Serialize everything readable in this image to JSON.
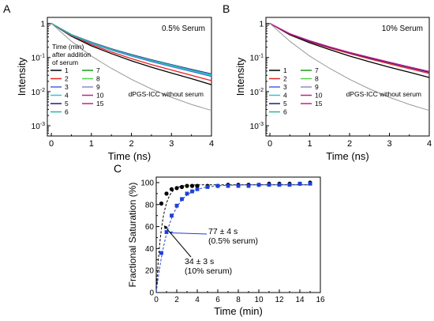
{
  "chart_data": [
    {
      "panel": "A",
      "type": "line",
      "xlabel": "Time (ns)",
      "ylabel": "Intensity",
      "xlim": [
        -0.1,
        4
      ],
      "ylim": [
        0.0005,
        1.5
      ],
      "yscale": "log",
      "xticks": [
        0,
        1,
        2,
        3,
        4
      ],
      "yticks": [
        {
          "v": 1,
          "label": "1"
        },
        {
          "v": 0.1,
          "label": "10-1"
        },
        {
          "v": 0.01,
          "label": "10-2"
        },
        {
          "v": 0.001,
          "label": "10-3"
        }
      ],
      "annotation": "0.5% Serum",
      "reference_label": "dPGS-ICC without serum",
      "legend_title": [
        "Time (min)",
        "after addition",
        "of serum"
      ],
      "legend": [
        {
          "label": "1",
          "color": "#000000"
        },
        {
          "label": "2",
          "color": "#e8231f"
        },
        {
          "label": "3",
          "color": "#5060e0"
        },
        {
          "label": "4",
          "color": "#27c9d6"
        },
        {
          "label": "5",
          "color": "#1a1a8c"
        },
        {
          "label": "6",
          "color": "#2fb39a"
        },
        {
          "label": "7",
          "color": "#1a9c1a"
        },
        {
          "label": "8",
          "color": "#55d14a"
        },
        {
          "label": "9",
          "color": "#8a8ad0"
        },
        {
          "label": "10",
          "color": "#c0208c"
        },
        {
          "label": "15",
          "color": "#c0208c"
        }
      ],
      "series": [
        {
          "name": "1",
          "color": "#000000",
          "x": [
            0,
            0.5,
            1,
            1.5,
            2,
            2.5,
            3,
            3.5,
            4
          ],
          "y": [
            1,
            0.42,
            0.22,
            0.13,
            0.08,
            0.052,
            0.035,
            0.024,
            0.016
          ]
        },
        {
          "name": "2",
          "color": "#e8231f",
          "x": [
            0,
            0.5,
            1,
            1.5,
            2,
            2.5,
            3,
            3.5,
            4
          ],
          "y": [
            1,
            0.44,
            0.24,
            0.145,
            0.093,
            0.062,
            0.043,
            0.03,
            0.021
          ]
        },
        {
          "name": "3",
          "color": "#5060e0",
          "x": [
            0,
            0.5,
            1,
            1.5,
            2,
            2.5,
            3,
            3.5,
            4
          ],
          "y": [
            1,
            0.45,
            0.26,
            0.165,
            0.11,
            0.076,
            0.054,
            0.039,
            0.028
          ]
        },
        {
          "name": "4",
          "color": "#27c9d6",
          "x": [
            0,
            0.5,
            1,
            1.5,
            2,
            2.5,
            3,
            3.5,
            4
          ],
          "y": [
            1,
            0.46,
            0.27,
            0.17,
            0.115,
            0.08,
            0.057,
            0.041,
            0.03
          ]
        },
        {
          "name": "5",
          "color": "#1a1a8c",
          "x": [
            0,
            0.5,
            1,
            1.5,
            2,
            2.5,
            3,
            3.5,
            4
          ],
          "y": [
            1,
            0.47,
            0.28,
            0.18,
            0.122,
            0.086,
            0.062,
            0.045,
            0.033
          ]
        },
        {
          "name": "6",
          "color": "#2fb39a",
          "x": [
            0,
            0.5,
            1,
            1.5,
            2,
            2.5,
            3,
            3.5,
            4
          ],
          "y": [
            1,
            0.465,
            0.275,
            0.175,
            0.118,
            0.083,
            0.06,
            0.043,
            0.032
          ]
        },
        {
          "name": "reference",
          "color": "#999999",
          "x": [
            0,
            0.5,
            1,
            1.5,
            2,
            2.5,
            3,
            3.5,
            4
          ],
          "y": [
            1,
            0.3,
            0.11,
            0.048,
            0.023,
            0.012,
            0.0068,
            0.0042,
            0.0028
          ]
        }
      ]
    },
    {
      "panel": "B",
      "type": "line",
      "xlabel": "Time (ns)",
      "ylabel": "Intensity",
      "xlim": [
        -0.1,
        4
      ],
      "ylim": [
        0.0005,
        1.5
      ],
      "yscale": "log",
      "xticks": [
        0,
        1,
        2,
        3,
        4
      ],
      "yticks": [
        {
          "v": 1,
          "label": "1"
        },
        {
          "v": 0.1,
          "label": "10-1"
        },
        {
          "v": 0.01,
          "label": "10-2"
        },
        {
          "v": 0.001,
          "label": "10-3"
        }
      ],
      "annotation": "10% Serum",
      "reference_label": "dPGS-ICC without serum",
      "legend": [
        {
          "label": "1",
          "color": "#000000"
        },
        {
          "label": "2",
          "color": "#e8231f"
        },
        {
          "label": "3",
          "color": "#5060e0"
        },
        {
          "label": "4",
          "color": "#27c9d6"
        },
        {
          "label": "5",
          "color": "#1a1a8c"
        },
        {
          "label": "6",
          "color": "#2fb39a"
        },
        {
          "label": "7",
          "color": "#1a9c1a"
        },
        {
          "label": "8",
          "color": "#55d14a"
        },
        {
          "label": "9",
          "color": "#8a8ad0"
        },
        {
          "label": "10",
          "color": "#c0208c"
        },
        {
          "label": "15",
          "color": "#c0208c"
        }
      ],
      "series": [
        {
          "name": "1",
          "color": "#000000",
          "x": [
            0,
            0.5,
            1,
            1.5,
            2,
            2.5,
            3,
            3.5,
            4
          ],
          "y": [
            1,
            0.46,
            0.27,
            0.17,
            0.11,
            0.075,
            0.052,
            0.037,
            0.026
          ]
        },
        {
          "name": "2",
          "color": "#e8231f",
          "x": [
            0,
            0.5,
            1,
            1.5,
            2,
            2.5,
            3,
            3.5,
            4
          ],
          "y": [
            1,
            0.48,
            0.29,
            0.19,
            0.13,
            0.091,
            0.065,
            0.047,
            0.034
          ]
        },
        {
          "name": "5",
          "color": "#1a1a8c",
          "x": [
            0,
            0.5,
            1,
            1.5,
            2,
            2.5,
            3,
            3.5,
            4
          ],
          "y": [
            1,
            0.49,
            0.3,
            0.2,
            0.137,
            0.097,
            0.07,
            0.051,
            0.037
          ]
        },
        {
          "name": "10",
          "color": "#c0208c",
          "x": [
            0,
            0.5,
            1,
            1.5,
            2,
            2.5,
            3,
            3.5,
            4
          ],
          "y": [
            1,
            0.5,
            0.31,
            0.205,
            0.142,
            0.101,
            0.073,
            0.053,
            0.039
          ]
        },
        {
          "name": "reference",
          "color": "#999999",
          "x": [
            0,
            0.5,
            1,
            1.5,
            2,
            2.5,
            3,
            3.5,
            4
          ],
          "y": [
            1,
            0.3,
            0.11,
            0.048,
            0.023,
            0.012,
            0.0068,
            0.0042,
            0.0028
          ]
        }
      ]
    },
    {
      "panel": "C",
      "type": "scatter",
      "xlabel": "Time (min)",
      "ylabel": "Fractional Saturation (%)",
      "xlim": [
        0,
        16
      ],
      "ylim": [
        0,
        105
      ],
      "xticks": [
        0,
        2,
        4,
        6,
        8,
        10,
        12,
        14,
        16
      ],
      "yticks": [
        0,
        20,
        40,
        60,
        80,
        100
      ],
      "series": [
        {
          "name": "10% serum",
          "color": "#000000",
          "x": [
            0.5,
            1,
            1.5,
            2,
            2.5,
            3,
            3.5,
            4,
            5,
            6,
            7,
            8,
            9,
            10,
            11,
            12,
            13,
            14,
            15
          ],
          "y": [
            81,
            90,
            94,
            95,
            96,
            97,
            97,
            97,
            97,
            97,
            98,
            98,
            98,
            98,
            99,
            99,
            99,
            99,
            100
          ]
        },
        {
          "name": "0.5% serum",
          "color": "#1f3fd6",
          "x": [
            0.5,
            1,
            1.5,
            2,
            2.5,
            3,
            3.5,
            4,
            5,
            6,
            7,
            8,
            9,
            10,
            11,
            12,
            13,
            14,
            15
          ],
          "y": [
            36,
            55,
            70,
            79,
            85,
            90,
            92,
            94,
            96,
            97,
            97,
            97,
            97,
            98,
            98,
            98,
            98,
            99,
            99
          ]
        }
      ],
      "fits": [
        {
          "series": "10% serum",
          "tau_s": 34,
          "plateau": 98,
          "color": "#000000"
        },
        {
          "series": "0.5% serum",
          "tau_s": 77,
          "plateau": 98,
          "color": "#1f3fd6"
        }
      ],
      "annotations": [
        {
          "lines": [
            "77 ± 4 s",
            "(0.5% serum)"
          ],
          "color": "#1f3fd6",
          "arrow_to": [
            1,
            55
          ]
        },
        {
          "lines": [
            "34 ± 3 s",
            "(10% serum)"
          ],
          "color": "#000000",
          "arrow_to": [
            0.6,
            61
          ]
        }
      ]
    }
  ],
  "labels": {
    "panel_a": "A",
    "panel_b": "B",
    "panel_c": "C"
  }
}
